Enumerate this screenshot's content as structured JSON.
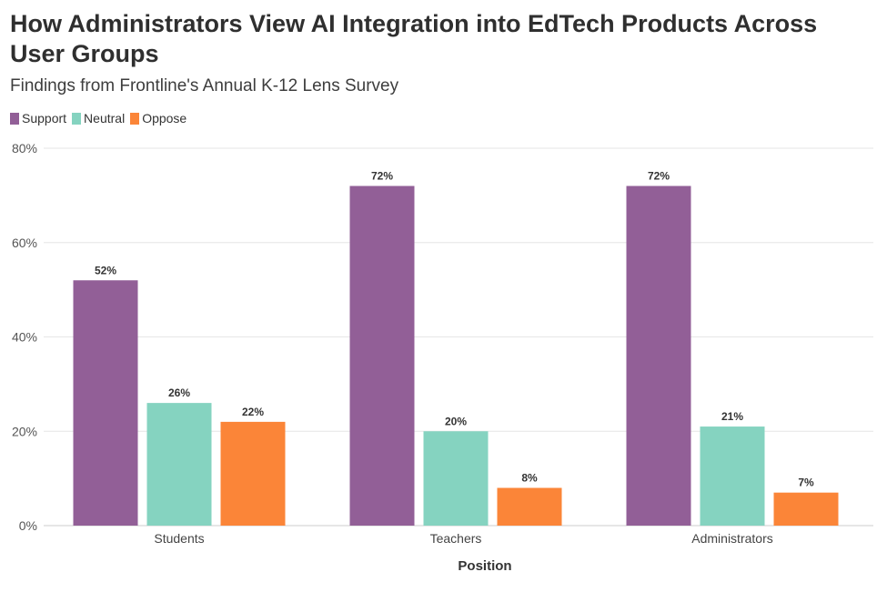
{
  "header": {
    "title": "How Administrators View AI Integration into EdTech Products Across User Groups",
    "subtitle": "Findings from Frontline's Annual K-12 Lens Survey"
  },
  "colors": {
    "support": "#925f97",
    "neutral": "#85d3c0",
    "oppose": "#fb8538",
    "grid": "#e6e6e6",
    "axis": "#cccccc"
  },
  "chart_data": {
    "type": "bar",
    "title": "How Administrators View AI Integration into EdTech Products Across User Groups",
    "subtitle": "Findings from Frontline's Annual K-12 Lens Survey",
    "xlabel": "Position",
    "ylabel": "",
    "ylim": [
      0,
      80
    ],
    "yticks": [
      "0%",
      "20%",
      "40%",
      "60%",
      "80%"
    ],
    "ytick_values": [
      0,
      20,
      40,
      60,
      80
    ],
    "grid": true,
    "legend_position": "top-left",
    "categories": [
      "Students",
      "Teachers",
      "Administrators"
    ],
    "series": [
      {
        "name": "Support",
        "color": "#925f97",
        "values": [
          52,
          72,
          72
        ],
        "labels": [
          "52%",
          "72%",
          "72%"
        ]
      },
      {
        "name": "Neutral",
        "color": "#85d3c0",
        "values": [
          26,
          20,
          21
        ],
        "labels": [
          "26%",
          "20%",
          "21%"
        ]
      },
      {
        "name": "Oppose",
        "color": "#fb8538",
        "values": [
          22,
          8,
          7
        ],
        "labels": [
          "22%",
          "8%",
          "7%"
        ]
      }
    ]
  }
}
